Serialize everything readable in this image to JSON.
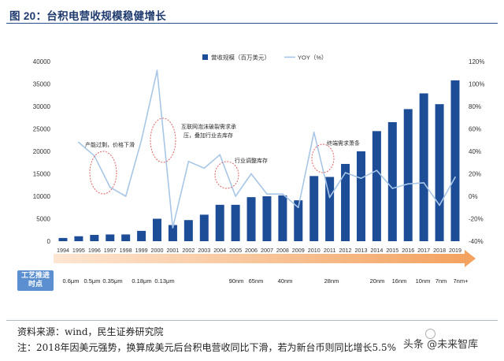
{
  "figure": {
    "title": "图 20：台积电营收规模稳健增长"
  },
  "chart_data": {
    "type": "bar",
    "categories": [
      "1994",
      "1995",
      "1996",
      "1997",
      "1998",
      "1999",
      "2000",
      "2001",
      "2002",
      "2003",
      "2004",
      "2005",
      "2006",
      "2007",
      "2008",
      "2009",
      "2010",
      "2011",
      "2012",
      "2013",
      "2014",
      "2015",
      "2016",
      "2017",
      "2018",
      "2019"
    ],
    "series": [
      {
        "name": "营收规模（百万美元）",
        "type": "bar",
        "y_axis": "left",
        "color": "#1e4d98",
        "values": [
          720,
          1100,
          1400,
          1500,
          1500,
          2300,
          5000,
          3600,
          4700,
          5900,
          8100,
          8100,
          9800,
          10000,
          10200,
          9100,
          14500,
          14300,
          17200,
          20000,
          24500,
          26500,
          29400,
          32900,
          30500,
          35800
        ]
      },
      {
        "name": "YOY（%）",
        "type": "line",
        "y_axis": "right",
        "color": "#a8c6e6",
        "values": [
          null,
          48,
          36,
          8,
          0,
          50,
          112,
          -28,
          31,
          25,
          37,
          0,
          20,
          2,
          2,
          -10,
          57,
          -1,
          21,
          16,
          23,
          7,
          11,
          12,
          -8,
          17
        ]
      }
    ],
    "ylim": [
      0,
      40000
    ],
    "yticks": [
      "0",
      "5000",
      "10000",
      "15000",
      "20000",
      "25000",
      "30000",
      "35000",
      "40000"
    ],
    "y2lim": [
      -40,
      120
    ],
    "y2ticks": [
      "-40%",
      "-20%",
      "0%",
      "20%",
      "40%",
      "60%",
      "80%",
      "100%",
      "120%"
    ],
    "grid": false,
    "legend": "top-center",
    "annotation_color": "#e06464",
    "annotations": [
      {
        "lines": [
          "产能过剩，价格下滑"
        ]
      },
      {
        "lines": [
          "互联网泡沫破裂需求承",
          "压，叠加行业去库存"
        ]
      },
      {
        "lines": [
          "行业调整库存"
        ]
      },
      {
        "lines": [
          "终端需求萧条"
        ]
      }
    ]
  },
  "timeline": {
    "label": "工艺推进时点",
    "arrow_colors": [
      "#fde6d2",
      "#f3a15e"
    ],
    "nodes": [
      "0.6μm",
      "0.5μm",
      "0.35μm",
      "0.18μm",
      "0.13μm",
      "90nm",
      "65nm",
      "40nm",
      "28nm",
      "20nm",
      "16nm",
      "10nm",
      "7nm",
      "7nm+"
    ]
  },
  "footer": {
    "source": "资料来源：wind，民生证券研究院",
    "note": "注：2018年因美元强势，换算成美元后台积电营收同比下滑，若为新台币则同比增长5.5%"
  },
  "watermark": {
    "text": "头条 @未来智库"
  }
}
